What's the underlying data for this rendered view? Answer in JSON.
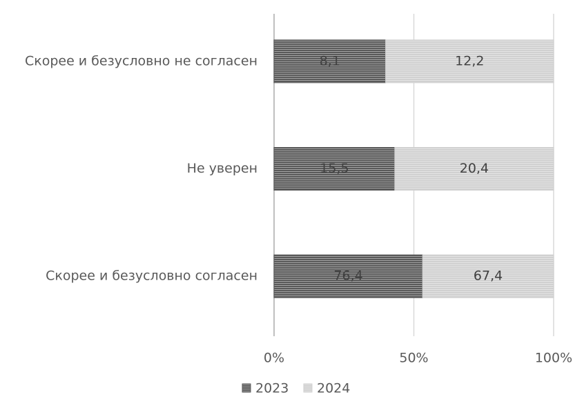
{
  "chart_data": {
    "type": "bar",
    "orientation": "horizontal",
    "stacked": "percent",
    "categories": [
      "Скорее и безусловно не согласен",
      "Не уверен",
      "Скорее и безусловно согласен"
    ],
    "series": [
      {
        "name": "2023",
        "color": "#595959",
        "values": [
          8.1,
          15.5,
          76.4
        ],
        "value_labels": [
          "8,1",
          "15,5",
          "76,4"
        ]
      },
      {
        "name": "2024",
        "color": "#d0d0d0",
        "values": [
          12.2,
          20.4,
          67.4
        ],
        "value_labels": [
          "12,2",
          "20,4",
          "67,4"
        ]
      }
    ],
    "xlim": [
      0,
      100
    ],
    "xticks": [
      {
        "value": 0,
        "label": "0%"
      },
      {
        "value": 50,
        "label": "50%"
      },
      {
        "value": 100,
        "label": "100%"
      }
    ],
    "grid": true,
    "legend": "bottom"
  }
}
